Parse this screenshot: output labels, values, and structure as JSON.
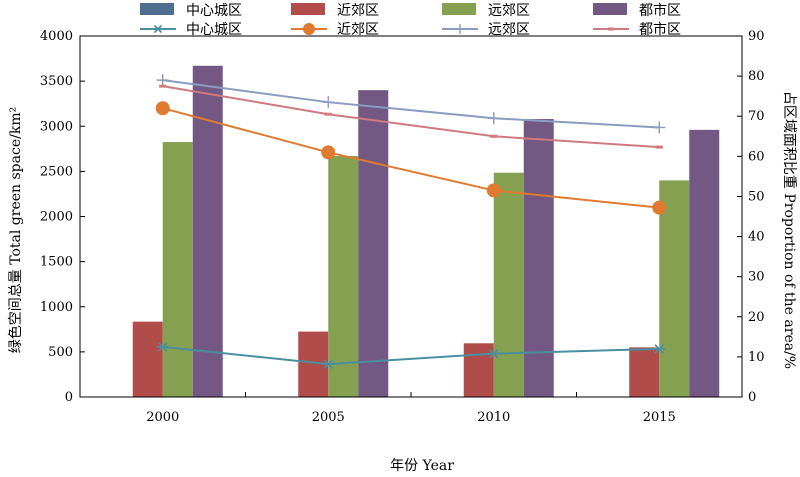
{
  "chart_data": {
    "type": "bar",
    "title": "",
    "xlabel": "年份 Year",
    "ylabel": "绿色空间总量 Total green space/km²",
    "y2label": "占区域面积比重 Proportion of the area/%",
    "categories": [
      "2000",
      "2005",
      "2010",
      "2015"
    ],
    "ylim": [
      0,
      4000
    ],
    "yticks": [
      0,
      500,
      1000,
      1500,
      2000,
      2500,
      3000,
      3500,
      4000
    ],
    "y2lim": [
      0,
      90
    ],
    "y2ticks": [
      0,
      10,
      20,
      30,
      40,
      50,
      60,
      70,
      80,
      90
    ],
    "grid": false,
    "legend_position": "top",
    "series": [
      {
        "name": "中心城区",
        "kind": "bar",
        "axis": "left",
        "color": "#4f6d8f",
        "values": [
          0,
          0,
          0,
          0
        ]
      },
      {
        "name": "近郊区",
        "kind": "bar",
        "axis": "left",
        "color": "#b04c4a",
        "values": [
          835,
          725,
          595,
          550
        ]
      },
      {
        "name": "远郊区",
        "kind": "bar",
        "axis": "left",
        "color": "#85a050",
        "values": [
          2825,
          2670,
          2485,
          2400
        ]
      },
      {
        "name": "都市区",
        "kind": "bar",
        "axis": "left",
        "color": "#735883",
        "values": [
          3670,
          3400,
          3080,
          2960
        ]
      },
      {
        "name": "中心城区",
        "kind": "line",
        "axis": "right",
        "color": "#4a8fa0",
        "marker": "star",
        "values": [
          12.5,
          8.2,
          10.8,
          12.0
        ]
      },
      {
        "name": "近郊区",
        "kind": "line",
        "axis": "right",
        "color": "#e07a30",
        "marker": "circle",
        "values": [
          72.0,
          61.0,
          51.5,
          47.2
        ]
      },
      {
        "name": "远郊区",
        "kind": "line",
        "axis": "right",
        "color": "#8a9cc0",
        "marker": "plus",
        "values": [
          79.0,
          73.5,
          69.5,
          67.2
        ]
      },
      {
        "name": "都市区",
        "kind": "line",
        "axis": "right",
        "color": "#d07a80",
        "marker": "dash",
        "values": [
          77.5,
          70.5,
          65.0,
          62.3
        ]
      }
    ]
  }
}
